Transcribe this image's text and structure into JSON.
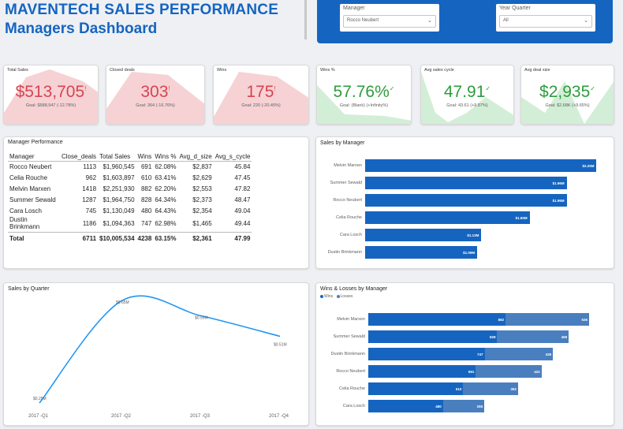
{
  "header": {
    "title_line1": "MAVENTECH SALES PERFORMANCE",
    "title_line2": "Managers Dashboard"
  },
  "filters": {
    "manager": {
      "label": "Manager",
      "value": "Rocco Neubert"
    },
    "year_quarter": {
      "label": "Year Quarter",
      "value": "All"
    }
  },
  "kpis": [
    {
      "name": "Total Sales",
      "value": "$513,705",
      "mark": "!",
      "goal": "Goal: $588,947 (-12.78%)",
      "status": "bad"
    },
    {
      "name": "Closed deals",
      "value": "303",
      "mark": "!",
      "goal": "Goal: 364 (-16.76%)",
      "status": "bad"
    },
    {
      "name": "Wins",
      "value": "175",
      "mark": "!",
      "goal": "Goal: 220 (-20.45%)",
      "status": "bad"
    },
    {
      "name": "Wins %",
      "value": "57.76%",
      "mark": "✓",
      "goal": "Goal: (Blank) (+Infinity%)",
      "status": "good"
    },
    {
      "name": "Avg sales cycle",
      "value": "47.91",
      "mark": "✓",
      "goal": "Goal: 43.61 (+9.87%)",
      "status": "good"
    },
    {
      "name": "Avg deal size",
      "value": "$2,935",
      "mark": "✓",
      "goal": "Goal: $2,68K (+9.65%)",
      "status": "good"
    }
  ],
  "manager_table": {
    "title": "Manager Performance",
    "columns": [
      "Manager",
      "Close_deals",
      "Total Sales",
      "Wins",
      "Wins %",
      "Avg_d_size",
      "Avg_s_cycle"
    ],
    "rows": [
      [
        "Rocco Neubert",
        "1113",
        "$1,960,545",
        "691",
        "62.08%",
        "$2,837",
        "45.84"
      ],
      [
        "Celia Rouche",
        "962",
        "$1,603,897",
        "610",
        "63.41%",
        "$2,629",
        "47.45"
      ],
      [
        "Melvin Marxen",
        "1418",
        "$2,251,930",
        "882",
        "62.20%",
        "$2,553",
        "47.82"
      ],
      [
        "Summer Sewald",
        "1287",
        "$1,964,750",
        "828",
        "64.34%",
        "$2,373",
        "48.47"
      ],
      [
        "Cara Losch",
        "745",
        "$1,130,049",
        "480",
        "64.43%",
        "$2,354",
        "49.04"
      ],
      [
        "Dustin Brinkmann",
        "1186",
        "$1,094,363",
        "747",
        "62.98%",
        "$1,465",
        "49.44"
      ]
    ],
    "total": [
      "Total",
      "6711",
      "$10,005,534",
      "4238",
      "63.15%",
      "$2,361",
      "47.99"
    ]
  },
  "chart_data": [
    {
      "type": "bar",
      "orientation": "horizontal",
      "title": "Sales by Manager",
      "categories": [
        "Melvin Marxen",
        "Summer Sewald",
        "Rocco Neubert",
        "Celia Rouche",
        "Cara Losch",
        "Dustin Brinkmann"
      ],
      "values": [
        2.25,
        1.96,
        1.96,
        1.6,
        1.13,
        1.09
      ],
      "labels": [
        "$2.25M",
        "$1.96M",
        "$1.96M",
        "$1.60M",
        "$1.13M",
        "$1.09M"
      ],
      "xlim": [
        0,
        2.3
      ],
      "color": "#1565c0"
    },
    {
      "type": "line",
      "title": "Sales by Quarter",
      "categories": [
        "2017 -Q1",
        "2017 -Q2",
        "2017 -Q3",
        "2017 -Q4"
      ],
      "values": [
        0.25,
        0.65,
        0.59,
        0.51
      ],
      "labels": [
        "$0.25M",
        "$0.65M",
        "$0.59M",
        "$0.51M"
      ],
      "ylim": [
        0.25,
        0.65
      ],
      "color": "#2196f3"
    },
    {
      "type": "bar",
      "orientation": "horizontal",
      "stacked": true,
      "title": "Wins & Losses by Manager",
      "legend": [
        "Wins",
        "Losses"
      ],
      "categories": [
        "Melvin Marxen",
        "Summer Sewald",
        "Dustin Brinkmann",
        "Rocco Neubert",
        "Celia Rouche",
        "Cara Losch"
      ],
      "series": [
        {
          "name": "Wins",
          "values": [
            882,
            828,
            747,
            691,
            610,
            480
          ],
          "color": "#1565c0"
        },
        {
          "name": "Losses",
          "values": [
            536,
            459,
            439,
            422,
            352,
            265
          ],
          "color": "#4a7fbf"
        }
      ],
      "xlim": [
        0,
        1418
      ]
    }
  ],
  "colors": {
    "brand": "#1565c0",
    "bad": "#d64550",
    "good": "#2e9d3d"
  }
}
